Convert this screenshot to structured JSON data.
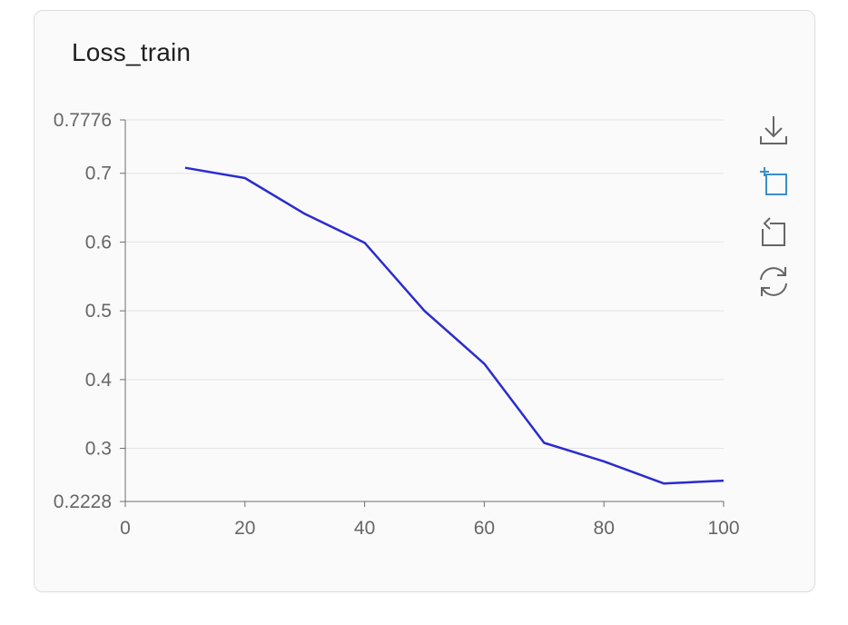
{
  "card": {
    "title": "Loss_train"
  },
  "toolbar": {
    "tools": [
      {
        "name": "download-icon",
        "color": "#666666"
      },
      {
        "name": "crop-select-icon",
        "color": "#3a8fc8"
      },
      {
        "name": "undo-zoom-icon",
        "color": "#666666"
      },
      {
        "name": "refresh-icon",
        "color": "#666666"
      }
    ]
  },
  "chart_data": {
    "type": "line",
    "title": "Loss_train",
    "xlabel": "",
    "ylabel": "",
    "xlim": [
      0,
      100
    ],
    "ylim": [
      0.2228,
      0.7776
    ],
    "x_ticks": [
      "0",
      "20",
      "40",
      "60",
      "80",
      "100"
    ],
    "y_ticks": [
      "0.2228",
      "0.3",
      "0.4",
      "0.5",
      "0.6",
      "0.7",
      "0.7776"
    ],
    "grid": true,
    "line_color": "#2b2bcf",
    "series": [
      {
        "x": [
          10,
          20,
          30,
          40,
          50,
          60,
          70,
          80,
          90,
          100
        ],
        "y": [
          0.708,
          0.693,
          0.641,
          0.599,
          0.5,
          0.423,
          0.308,
          0.281,
          0.249,
          0.253
        ]
      }
    ]
  }
}
